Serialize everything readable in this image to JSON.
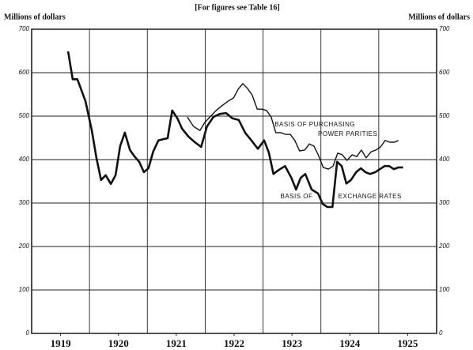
{
  "chart_data": {
    "type": "line",
    "subtitle": "[For figures see Table 16]",
    "ylabel": "Millions of dollars",
    "y2label": "Millions of dollars",
    "xlim": [
      1919,
      1926
    ],
    "xticks": [
      {
        "value": 1919.5,
        "label": "1919"
      },
      {
        "value": 1920.5,
        "label": "1920"
      },
      {
        "value": 1921.5,
        "label": "1921"
      },
      {
        "value": 1922.5,
        "label": "1922"
      },
      {
        "value": 1923.5,
        "label": "1923"
      },
      {
        "value": 1924.5,
        "label": "1924"
      },
      {
        "value": 1925.5,
        "label": "1925"
      }
    ],
    "ylim": [
      0,
      700
    ],
    "yticks": [
      0,
      100,
      200,
      300,
      400,
      500,
      600,
      700
    ],
    "y2lim": [
      0,
      700
    ],
    "y2ticks": [
      0,
      100,
      200,
      300,
      400,
      500,
      600,
      700
    ],
    "grid": true,
    "annotations": [
      {
        "text": "BASIS OF PURCHASING",
        "x": 1923.2,
        "y": 480
      },
      {
        "text": "POWER PARITIES",
        "x": 1923.95,
        "y": 458
      },
      {
        "text": "BASIS OF",
        "x": 1923.3,
        "y": 315
      },
      {
        "text": "EXCHANGE RATES",
        "x": 1924.3,
        "y": 315
      }
    ],
    "series": [
      {
        "name": "Basis of exchange rates",
        "color": "#111",
        "width": 2.6,
        "x": [
          1919.63,
          1919.71,
          1919.79,
          1919.93,
          1920.04,
          1920.12,
          1920.2,
          1920.28,
          1920.37,
          1920.45,
          1920.53,
          1920.61,
          1920.7,
          1920.78,
          1920.86,
          1920.94,
          1921.02,
          1921.1,
          1921.19,
          1921.27,
          1921.35,
          1921.43,
          1921.52,
          1921.6,
          1921.71,
          1921.82,
          1921.93,
          1922.03,
          1922.14,
          1922.25,
          1922.36,
          1922.47,
          1922.58,
          1922.69,
          1922.8,
          1922.91,
          1923.02,
          1923.1,
          1923.18,
          1923.27,
          1923.38,
          1923.49,
          1923.57,
          1923.65,
          1923.73,
          1923.84,
          1923.95,
          1924.03,
          1924.11,
          1924.2,
          1924.28,
          1924.36,
          1924.44,
          1924.52,
          1924.61,
          1924.69,
          1924.77,
          1924.85,
          1924.94,
          1925.02,
          1925.1,
          1925.18,
          1925.26,
          1925.34,
          1925.42
        ],
        "values": [
          649,
          585,
          585,
          535,
          467,
          404,
          353,
          364,
          344,
          364,
          431,
          462,
          422,
          407,
          395,
          371,
          380,
          418,
          444,
          447,
          449,
          513,
          495,
          471,
          453,
          440,
          429,
          476,
          498,
          505,
          507,
          495,
          491,
          462,
          444,
          425,
          444,
          416,
          367,
          376,
          385,
          358,
          331,
          358,
          367,
          331,
          322,
          298,
          291,
          291,
          395,
          385,
          345,
          353,
          371,
          380,
          371,
          367,
          371,
          378,
          385,
          385,
          378,
          382,
          382
        ]
      },
      {
        "name": "Basis of purchasing power parities",
        "color": "#111",
        "width": 1.4,
        "x": [
          1921.69,
          1921.8,
          1921.91,
          1921.99,
          1922.08,
          1922.19,
          1922.29,
          1922.4,
          1922.49,
          1922.57,
          1922.65,
          1922.73,
          1922.81,
          1922.9,
          1922.98,
          1923.06,
          1923.14,
          1923.22,
          1923.31,
          1923.39,
          1923.47,
          1923.55,
          1923.63,
          1923.72,
          1923.8,
          1923.88,
          1923.96,
          1924.04,
          1924.13,
          1924.21,
          1924.29,
          1924.37,
          1924.45,
          1924.54,
          1924.62,
          1924.7,
          1924.78,
          1924.87,
          1924.95,
          1925.03,
          1925.11,
          1925.19,
          1925.27,
          1925.34
        ],
        "values": [
          498,
          476,
          467,
          485,
          498,
          513,
          524,
          535,
          542,
          562,
          575,
          564,
          549,
          516,
          516,
          513,
          498,
          462,
          462,
          458,
          458,
          444,
          420,
          422,
          436,
          431,
          409,
          382,
          378,
          385,
          415,
          411,
          398,
          411,
          407,
          422,
          404,
          418,
          422,
          429,
          444,
          440,
          440,
          444
        ]
      }
    ]
  }
}
